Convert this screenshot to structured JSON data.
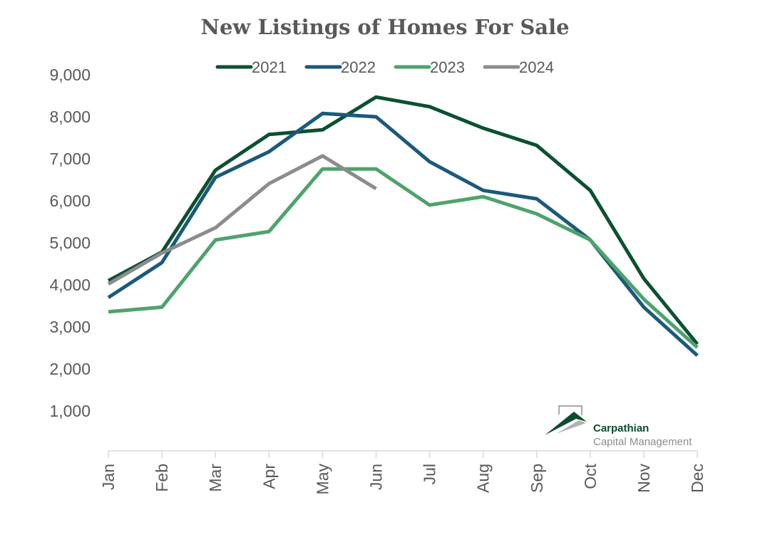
{
  "chart_data": {
    "type": "line",
    "title": "New Listings of Homes For Sale",
    "xlabel": "",
    "ylabel": "",
    "categories": [
      "Jan",
      "Feb",
      "Mar",
      "Apr",
      "May",
      "Jun",
      "Jul",
      "Aug",
      "Sep",
      "Oct",
      "Nov",
      "Dec"
    ],
    "y_ticks": [
      "1,000",
      "2,000",
      "3,000",
      "4,000",
      "5,000",
      "6,000",
      "7,000",
      "8,000",
      "9,000"
    ],
    "y_tick_values": [
      1000,
      2000,
      3000,
      4000,
      5000,
      6000,
      7000,
      8000,
      9000
    ],
    "ylim": [
      0,
      9000
    ],
    "grid": false,
    "legend_position": "top-center",
    "series": [
      {
        "name": "2021",
        "color": "#0b5130",
        "values": [
          4100,
          4780,
          6730,
          7580,
          7690,
          8470,
          8240,
          7730,
          7320,
          6250,
          4150,
          2590
        ]
      },
      {
        "name": "2022",
        "color": "#1a5a7a",
        "values": [
          3700,
          4530,
          6560,
          7170,
          8080,
          8000,
          6930,
          6250,
          6050,
          5070,
          3470,
          2320
        ]
      },
      {
        "name": "2023",
        "color": "#4ea36b",
        "values": [
          3360,
          3470,
          5070,
          5270,
          6760,
          6760,
          5900,
          6100,
          5690,
          5070,
          3660,
          2510
        ]
      },
      {
        "name": "2024",
        "color": "#8c8c8c",
        "values": [
          4020,
          4760,
          5360,
          6410,
          7070,
          6290,
          null,
          null,
          null,
          null,
          null,
          null
        ]
      }
    ]
  },
  "logo": {
    "name": "Carpathian",
    "subtitle": "Capital Management",
    "color": "#0d4d2c"
  }
}
